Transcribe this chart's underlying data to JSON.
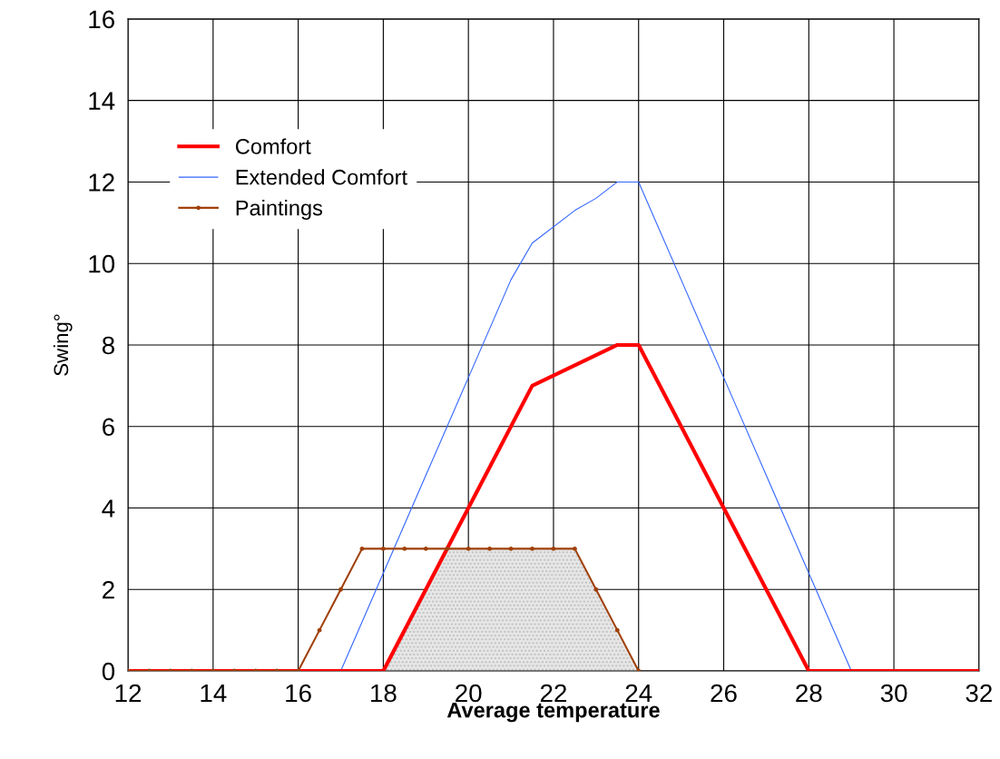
{
  "chart_data": {
    "type": "line",
    "xlabel": "Average temperature",
    "ylabel": "Swing°",
    "xlim": [
      12,
      32
    ],
    "ylim": [
      0,
      16
    ],
    "xticks": [
      12,
      14,
      16,
      18,
      20,
      22,
      24,
      26,
      28,
      30,
      32
    ],
    "yticks": [
      0,
      2,
      4,
      6,
      8,
      10,
      12,
      14,
      16
    ],
    "grid": true,
    "legend": "top left",
    "series": [
      {
        "type": "area",
        "color": "#c0c0c0",
        "x": [
          18,
          19,
          19.5,
          22.5,
          23,
          23.5,
          24
        ],
        "values": [
          0,
          2,
          3,
          3,
          2,
          1,
          0
        ]
      },
      {
        "name": "Comfort",
        "color": "#ff0000",
        "x": [
          12,
          18,
          19,
          20,
          21.5,
          23,
          23.5,
          24,
          26,
          28,
          32
        ],
        "values": [
          0,
          0,
          2,
          4,
          7,
          7.75,
          8,
          8,
          4,
          0,
          0
        ]
      },
      {
        "name": "Extended Comfort",
        "color": "#3366ff",
        "x": [
          16,
          17,
          18,
          19,
          20,
          21,
          21.5,
          22.5,
          23,
          23.5,
          24,
          25,
          26,
          27,
          28,
          29,
          32
        ],
        "values": [
          0,
          0,
          2.4,
          4.8,
          7.2,
          9.6,
          10.5,
          11.3,
          11.6,
          12,
          12,
          9.6,
          7.2,
          4.8,
          2.4,
          0,
          0
        ]
      },
      {
        "name": "Paintings",
        "color": "#a0400a",
        "marker": "circle",
        "x": [
          12,
          12.5,
          13,
          13.5,
          14,
          14.5,
          15,
          15.5,
          16,
          16.5,
          17,
          17.5,
          18,
          18.5,
          19,
          19.5,
          20,
          20.5,
          21,
          21.5,
          22,
          22.5,
          23,
          23.5,
          24
        ],
        "values": [
          0,
          0,
          0,
          0,
          0,
          0,
          0,
          0,
          0,
          1,
          2,
          3,
          3,
          3,
          3,
          3,
          3,
          3,
          3,
          3,
          3,
          3,
          2,
          1,
          0
        ]
      }
    ]
  }
}
